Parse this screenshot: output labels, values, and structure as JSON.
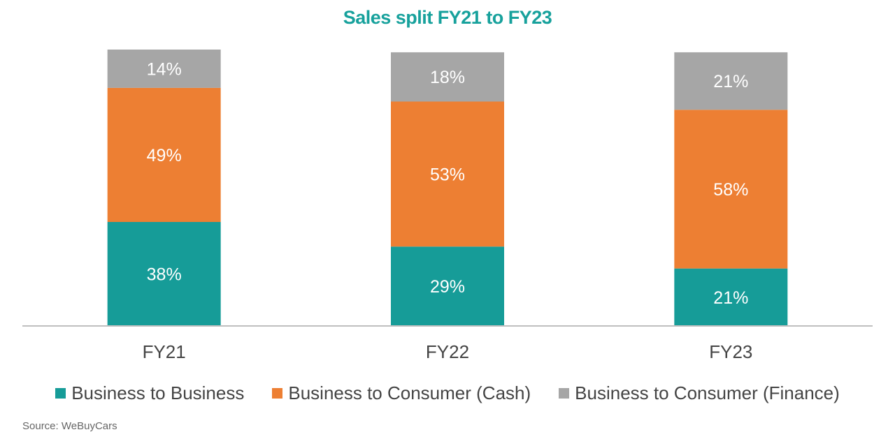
{
  "colors": {
    "title": "#17a19c",
    "b2b": "#169c98",
    "b2c_cash": "#ed7f33",
    "b2c_finance": "#a6a6a6",
    "axis": "#bfbfbf",
    "tick_text": "#444444",
    "label_text": "#ffffff"
  },
  "chart_data": {
    "type": "bar",
    "stacked": true,
    "title": "Sales split FY21 to FY23",
    "categories": [
      "FY21",
      "FY22",
      "FY23"
    ],
    "series": [
      {
        "name": "Business to Business",
        "values": [
          38,
          29,
          21
        ],
        "labels": [
          "38%",
          "29%",
          "21%"
        ],
        "color": "#169c98"
      },
      {
        "name": "Business to Consumer (Cash)",
        "values": [
          49,
          53,
          58
        ],
        "labels": [
          "49%",
          "53%",
          "58%"
        ],
        "color": "#ed7f33"
      },
      {
        "name": "Business to Consumer (Finance)",
        "values": [
          14,
          18,
          21
        ],
        "labels": [
          "14%",
          "18%",
          "21%"
        ],
        "color": "#a6a6a6"
      }
    ],
    "xlabel": "",
    "ylabel": "",
    "ylim": [
      0,
      101
    ],
    "grid": false,
    "legend_position": "bottom"
  },
  "source": "Source: WeBuyCars"
}
